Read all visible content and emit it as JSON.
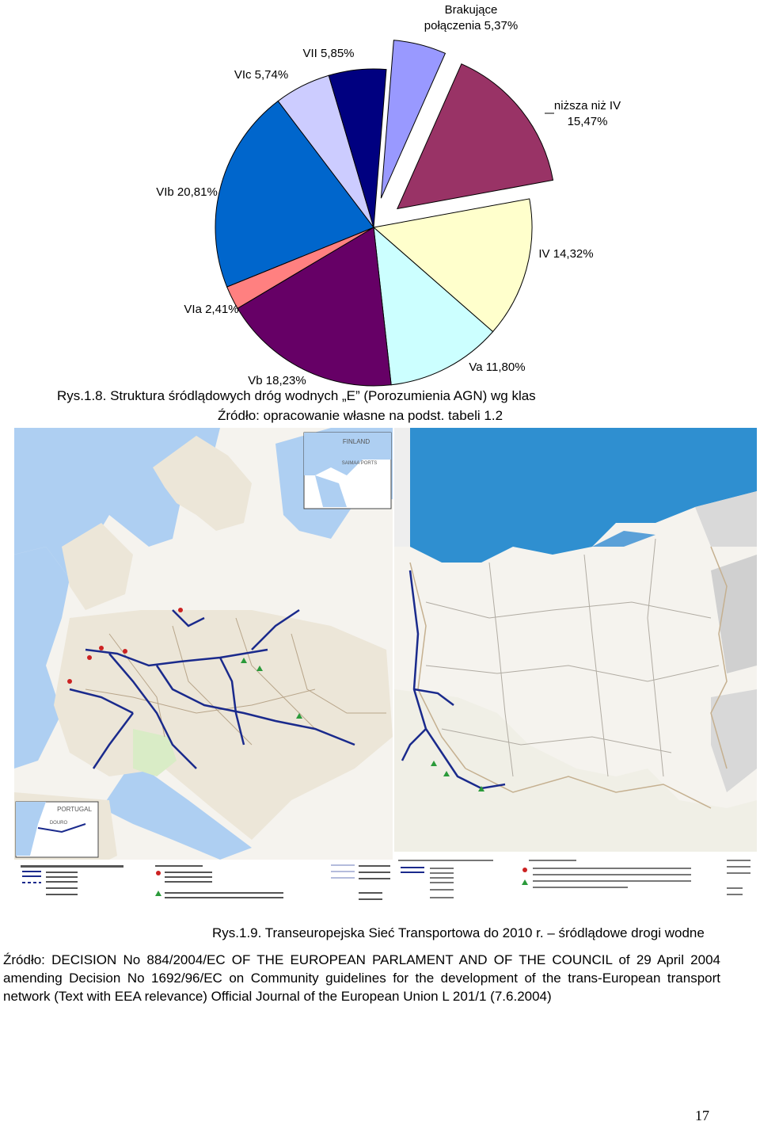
{
  "chart_data": {
    "type": "pie",
    "title": "",
    "slices": [
      {
        "label": "Brakujące połączenia 5,37%",
        "value": 5.37,
        "color": "#9999ff",
        "exploded": true
      },
      {
        "label": "niższa niż IV 15,47%",
        "value": 15.47,
        "color": "#993366",
        "exploded": true
      },
      {
        "label": "IV 14,32%",
        "value": 14.32,
        "color": "#ffffcc",
        "exploded": false
      },
      {
        "label": "Va 11,80%",
        "value": 11.8,
        "color": "#ccffff",
        "exploded": false
      },
      {
        "label": "Vb 18,23%",
        "value": 18.23,
        "color": "#660066",
        "exploded": false
      },
      {
        "label": "VIa 2,41%",
        "value": 2.41,
        "color": "#ff8080",
        "exploded": false
      },
      {
        "label": "VIb 20,81%",
        "value": 20.81,
        "color": "#0066cc",
        "exploded": false
      },
      {
        "label": "VIc 5,74%",
        "value": 5.74,
        "color": "#ccccff",
        "exploded": false
      },
      {
        "label": "VII 5,85%",
        "value": 5.85,
        "color": "#000080",
        "exploded": false
      }
    ]
  },
  "labels": {
    "missing": "Brakujące\npołączenia 5,37%",
    "below_iv": "niższa niż IV\n15,47%",
    "iv": "IV 14,32%",
    "va": "Va 11,80%",
    "vb": "Vb 18,23%",
    "via": "VIa 2,41%",
    "vib": "VIb 20,81%",
    "vic": "VIc 5,74%",
    "vii": "VII 5,85%"
  },
  "figure8": {
    "caption": "Rys.1.8. Struktura śródlądowych dróg wodnych „E” (Porozumienia AGN) wg klas",
    "source": "Źródło: opracowanie własne na podst. tabeli 1.2"
  },
  "maps": {
    "finland_label": "FINLAND",
    "ports_label": "SAIMAA PORTS",
    "portugal_label": "PORTUGAL",
    "douro_label": "DOURO"
  },
  "figure9": {
    "caption": "Rys.1.9. Transeuropejska Sieć Transportowa do 2010 r. – śródlądowe drogi wodne",
    "source": "Źródło: DECISION No 884/2004/EC OF THE EUROPEAN PARLAMENT AND OF THE COUNCIL of 29 April 2004 amending Decision No 1692/96/EC on Community guidelines for the development of the trans-European transport network (Text with EEA relevance) Official Journal of the European Union L 201/1 (7.6.2004)"
  },
  "page_number": "17"
}
